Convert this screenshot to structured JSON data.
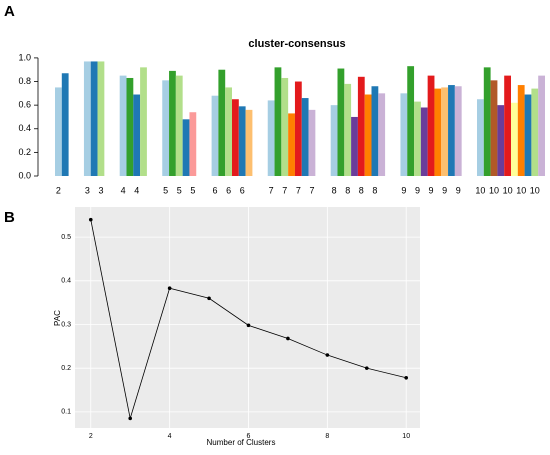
{
  "panels": [
    "A",
    "B"
  ],
  "chart_data": [
    {
      "type": "bar",
      "title": "cluster-consensus",
      "ylim": [
        0,
        1.05
      ],
      "yticks": [
        {
          "value": 0,
          "label": "0.0"
        },
        0.2,
        0.4,
        0.6,
        0.8,
        {
          "value": 1,
          "label": "1.0"
        }
      ],
      "groups": [
        {
          "labels": [
            "2",
            null
          ],
          "values": [
            0.75,
            0.87
          ],
          "colors": [
            "#a6cee3",
            "#1f78b4"
          ]
        },
        {
          "labels": [
            "3",
            null,
            "3"
          ],
          "values": [
            0.97,
            0.97,
            0.97
          ],
          "colors": [
            "#a6cee3",
            "#1f78b4",
            "#b2df8a"
          ]
        },
        {
          "labels": [
            "4",
            null,
            "4",
            null
          ],
          "values": [
            0.85,
            0.83,
            0.69,
            0.92
          ],
          "colors": [
            "#a6cee3",
            "#33a02c",
            "#1f78b4",
            "#b2df8a"
          ]
        },
        {
          "labels": [
            "5",
            null,
            "5",
            null,
            "5"
          ],
          "values": [
            0.81,
            0.89,
            0.85,
            0.48,
            0.54
          ],
          "colors": [
            "#a6cee3",
            "#33a02c",
            "#b2df8a",
            "#1f78b4",
            "#fb9a99"
          ]
        },
        {
          "labels": [
            "6",
            null,
            "6",
            null,
            "6",
            null
          ],
          "values": [
            0.68,
            0.9,
            0.75,
            0.65,
            0.59,
            0.56
          ],
          "colors": [
            "#a6cee3",
            "#33a02c",
            "#b2df8a",
            "#e31a1c",
            "#1f78b4",
            "#fdbf6f"
          ]
        },
        {
          "labels": [
            "7",
            null,
            "7",
            null,
            "7",
            null,
            "7"
          ],
          "values": [
            0.64,
            0.92,
            0.83,
            0.53,
            0.8,
            0.66,
            0.56
          ],
          "colors": [
            "#a6cee3",
            "#33a02c",
            "#b2df8a",
            "#ff7f00",
            "#e31a1c",
            "#1f78b4",
            "#cab2d6"
          ]
        },
        {
          "labels": [
            "8",
            null,
            "8",
            null,
            "8",
            null,
            "8",
            null
          ],
          "values": [
            0.6,
            0.91,
            0.78,
            0.5,
            0.84,
            0.69,
            0.76,
            0.7
          ],
          "colors": [
            "#a6cee3",
            "#33a02c",
            "#b2df8a",
            "#6a3d9a",
            "#e31a1c",
            "#ff7f00",
            "#1f78b4",
            "#cab2d6"
          ]
        },
        {
          "labels": [
            "9",
            null,
            "9",
            null,
            "9",
            null,
            "9",
            null,
            "9"
          ],
          "values": [
            0.7,
            0.93,
            0.63,
            0.58,
            0.85,
            0.74,
            0.75,
            0.77,
            0.76
          ],
          "colors": [
            "#a6cee3",
            "#33a02c",
            "#b2df8a",
            "#6a3d9a",
            "#e31a1c",
            "#ff7f00",
            "#fdbf6f",
            "#1f78b4",
            "#cab2d6"
          ]
        },
        {
          "labels": [
            "10",
            null,
            "10",
            null,
            "10",
            null,
            "10",
            null,
            "10",
            null
          ],
          "values": [
            0.65,
            0.92,
            0.81,
            0.6,
            0.85,
            0.62,
            0.77,
            0.69,
            0.74,
            0.85
          ],
          "colors": [
            "#a6cee3",
            "#33a02c",
            "#b15928",
            "#6a3d9a",
            "#e31a1c",
            "#ffff99",
            "#ff7f00",
            "#1f78b4",
            "#b2df8a",
            "#cab2d6"
          ]
        }
      ]
    },
    {
      "type": "line",
      "x_label": "Number of Clusters",
      "y_label": "PAC",
      "color": "#000000",
      "x": [
        2,
        3,
        4,
        5,
        6,
        7,
        8,
        9,
        10
      ],
      "values": [
        0.54,
        0.085,
        0.383,
        0.36,
        0.298,
        0.268,
        0.23,
        0.2,
        0.178
      ],
      "xlim": [
        1.6,
        10.35
      ],
      "xticks": [
        2,
        4,
        6,
        8,
        10
      ],
      "ylim": [
        0.063,
        0.569
      ],
      "yticks": [
        0.1,
        0.2,
        0.3,
        0.4,
        0.5
      ],
      "grid": true
    }
  ]
}
